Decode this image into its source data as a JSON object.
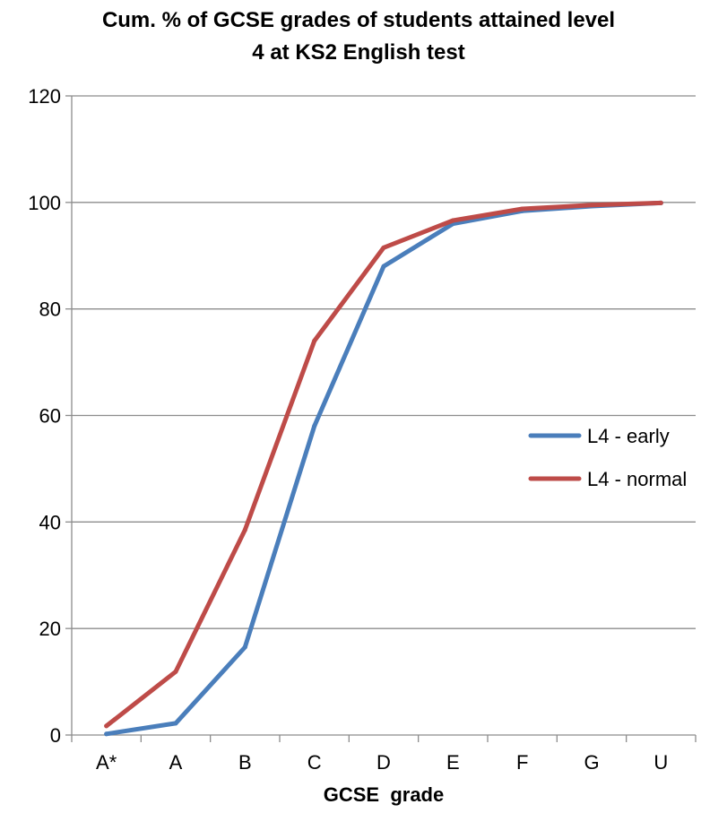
{
  "chart_data": {
    "type": "line",
    "title_line1": "Cum. % of GCSE grades of students attained level",
    "title_line2": "4 at KS2 English test",
    "xlabel": "GCSE  grade",
    "ylabel": "",
    "categories": [
      "A*",
      "A",
      "B",
      "C",
      "D",
      "E",
      "F",
      "G",
      "U"
    ],
    "ylim": [
      0,
      120
    ],
    "yticks": [
      0,
      20,
      40,
      60,
      80,
      100,
      120
    ],
    "grid": true,
    "legend_position": "right",
    "series": [
      {
        "name": "L4 - early",
        "color": "#4a7ebb",
        "values": [
          0.2,
          2.2,
          16.5,
          58,
          88,
          96,
          98.4,
          99.3,
          99.9
        ]
      },
      {
        "name": "L4 - normal",
        "color": "#be4b48",
        "values": [
          1.7,
          11.9,
          38.5,
          74,
          91.5,
          96.6,
          98.8,
          99.5,
          99.9
        ]
      }
    ]
  }
}
